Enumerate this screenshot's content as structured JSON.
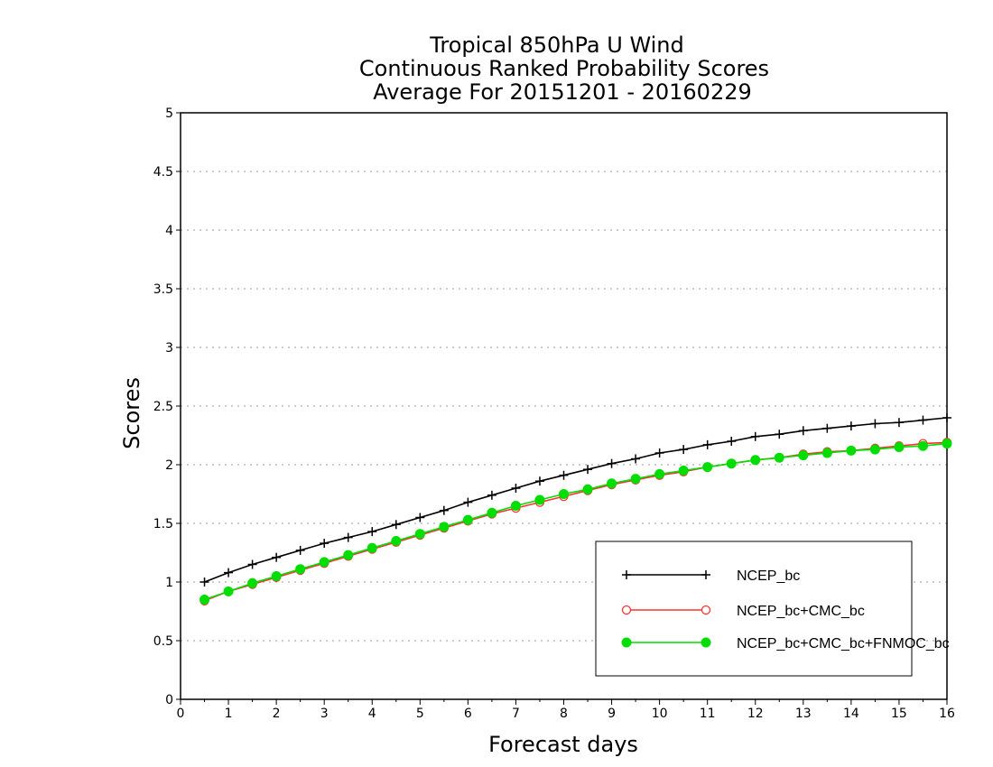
{
  "chart_data": {
    "type": "line",
    "title": [
      "Tropical 850hPa U Wind",
      "Continuous Ranked Probability Scores",
      "Average For 20151201 - 20160229"
    ],
    "xlabel": "Forecast days",
    "ylabel": "Scores",
    "xlim": [
      0,
      16
    ],
    "ylim": [
      0,
      5
    ],
    "xticks": [
      "0",
      "1",
      "2",
      "3",
      "4",
      "5",
      "6",
      "7",
      "8",
      "9",
      "10",
      "11",
      "12",
      "13",
      "14",
      "15",
      "16"
    ],
    "yticks": [
      "0",
      "0.5",
      "1",
      "1.5",
      "2",
      "2.5",
      "3",
      "3.5",
      "4",
      "4.5",
      "5"
    ],
    "grid": "horizontal dotted",
    "legend_position": "bottom-right",
    "x": [
      0.5,
      1,
      1.5,
      2,
      2.5,
      3,
      3.5,
      4,
      4.5,
      5,
      5.5,
      6,
      6.5,
      7,
      7.5,
      8,
      8.5,
      9,
      9.5,
      10,
      10.5,
      11,
      11.5,
      12,
      12.5,
      13,
      13.5,
      14,
      14.5,
      15,
      15.5,
      16
    ],
    "series": [
      {
        "name": "NCEP_bc",
        "color": "#000000",
        "marker": "plus",
        "values": [
          1.0,
          1.08,
          1.15,
          1.21,
          1.27,
          1.33,
          1.38,
          1.43,
          1.49,
          1.55,
          1.61,
          1.68,
          1.74,
          1.8,
          1.86,
          1.91,
          1.96,
          2.01,
          2.05,
          2.1,
          2.13,
          2.17,
          2.2,
          2.24,
          2.26,
          2.29,
          2.31,
          2.33,
          2.35,
          2.36,
          2.38,
          2.4
        ]
      },
      {
        "name": "NCEP_bc+CMC_bc",
        "color": "#ff3333",
        "marker": "open-circle",
        "values": [
          0.84,
          0.92,
          0.98,
          1.04,
          1.1,
          1.16,
          1.22,
          1.28,
          1.34,
          1.4,
          1.46,
          1.52,
          1.58,
          1.63,
          1.68,
          1.73,
          1.78,
          1.83,
          1.87,
          1.91,
          1.94,
          1.98,
          2.01,
          2.04,
          2.06,
          2.09,
          2.11,
          2.12,
          2.14,
          2.16,
          2.18,
          2.19
        ]
      },
      {
        "name": "NCEP_bc+CMC_bc+FNMOC_bc",
        "color": "#00dd00",
        "marker": "filled-circle",
        "values": [
          0.85,
          0.92,
          0.99,
          1.05,
          1.11,
          1.17,
          1.23,
          1.29,
          1.35,
          1.41,
          1.47,
          1.53,
          1.59,
          1.65,
          1.7,
          1.75,
          1.79,
          1.84,
          1.88,
          1.92,
          1.95,
          1.98,
          2.01,
          2.04,
          2.06,
          2.08,
          2.1,
          2.12,
          2.13,
          2.15,
          2.16,
          2.18
        ]
      }
    ]
  }
}
